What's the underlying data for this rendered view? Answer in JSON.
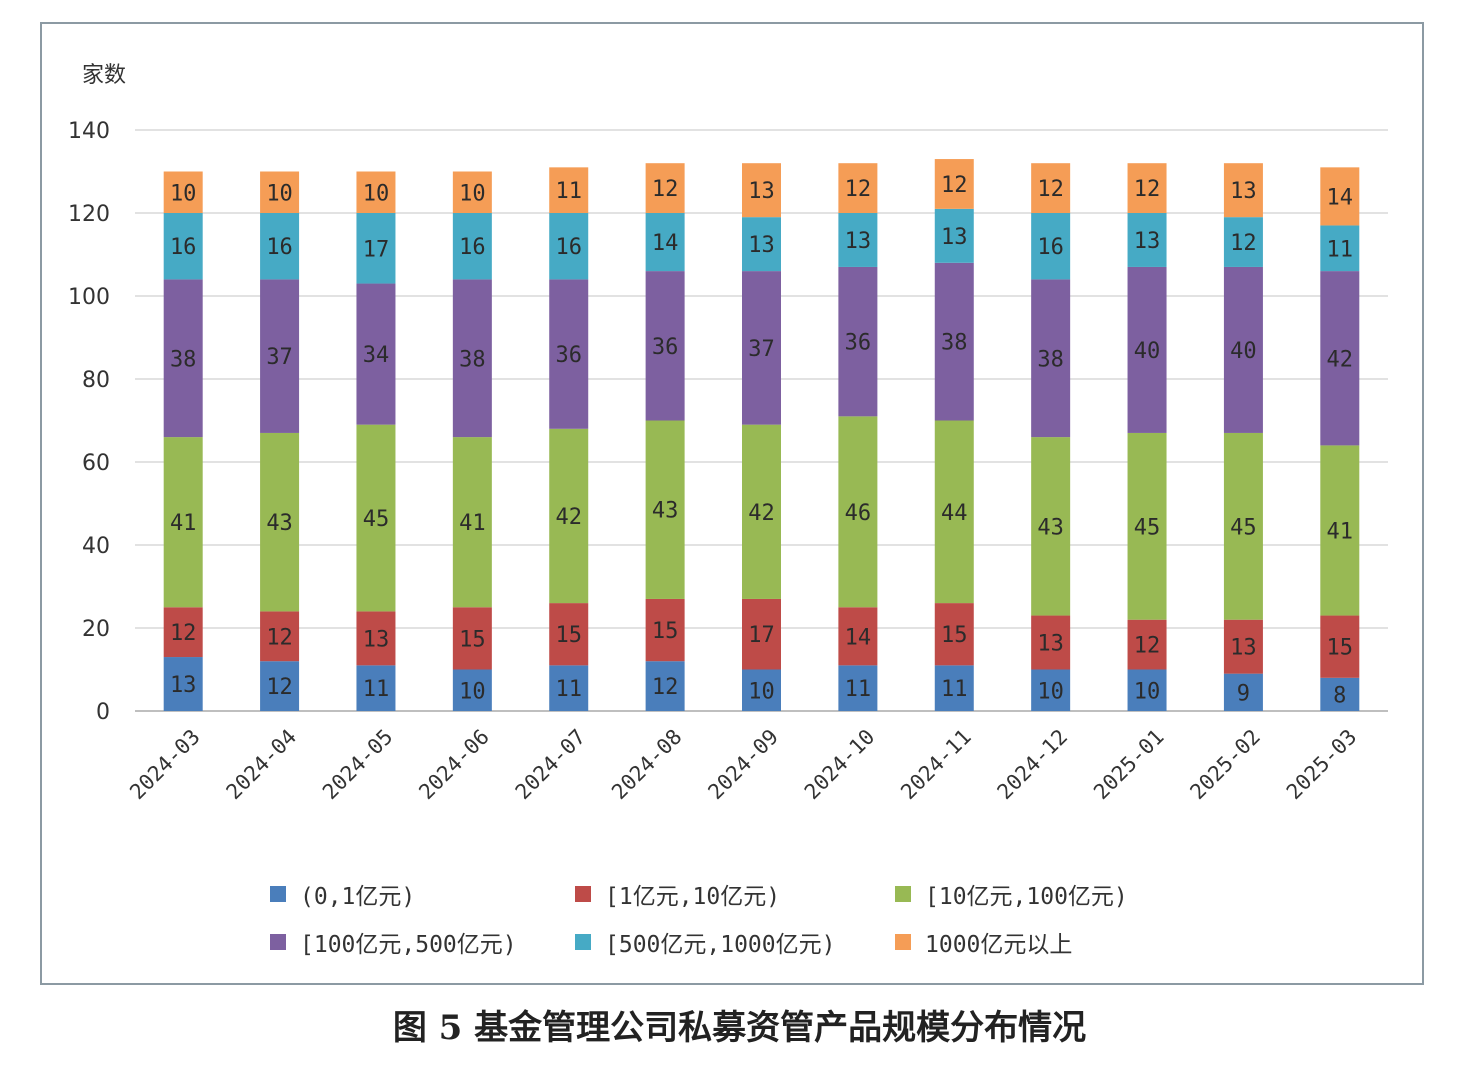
{
  "caption": "图 5   基金管理公司私募资管产品规模分布情况",
  "chart_data": {
    "type": "bar",
    "stacked": true,
    "ylabel": "家数",
    "ylim": [
      0,
      140
    ],
    "yticks": [
      0,
      20,
      40,
      60,
      80,
      100,
      120,
      140
    ],
    "grid": true,
    "legend_position": "bottom",
    "categories": [
      "2024-03",
      "2024-04",
      "2024-05",
      "2024-06",
      "2024-07",
      "2024-08",
      "2024-09",
      "2024-10",
      "2024-11",
      "2024-12",
      "2025-01",
      "2025-02",
      "2025-03"
    ],
    "series": [
      {
        "name": "(0,1亿元)",
        "color": "#4a7ebb",
        "values": [
          13,
          12,
          11,
          10,
          11,
          12,
          10,
          11,
          11,
          10,
          10,
          9,
          8
        ]
      },
      {
        "name": "[1亿元,10亿元)",
        "color": "#be4b48",
        "values": [
          12,
          12,
          13,
          15,
          15,
          15,
          17,
          14,
          15,
          13,
          12,
          13,
          15
        ]
      },
      {
        "name": "[10亿元,100亿元)",
        "color": "#98b954",
        "values": [
          41,
          43,
          45,
          41,
          42,
          43,
          42,
          46,
          44,
          43,
          45,
          45,
          41
        ]
      },
      {
        "name": "[100亿元,500亿元)",
        "color": "#7d60a0",
        "values": [
          38,
          37,
          34,
          38,
          36,
          36,
          37,
          36,
          38,
          38,
          40,
          40,
          42
        ]
      },
      {
        "name": "[500亿元,1000亿元)",
        "color": "#46aac5",
        "values": [
          16,
          16,
          17,
          16,
          16,
          14,
          13,
          13,
          13,
          16,
          13,
          12,
          11
        ]
      },
      {
        "name": "1000亿元以上",
        "color": "#f59d56",
        "values": [
          10,
          10,
          10,
          10,
          11,
          12,
          13,
          12,
          12,
          12,
          12,
          13,
          14
        ]
      }
    ]
  }
}
